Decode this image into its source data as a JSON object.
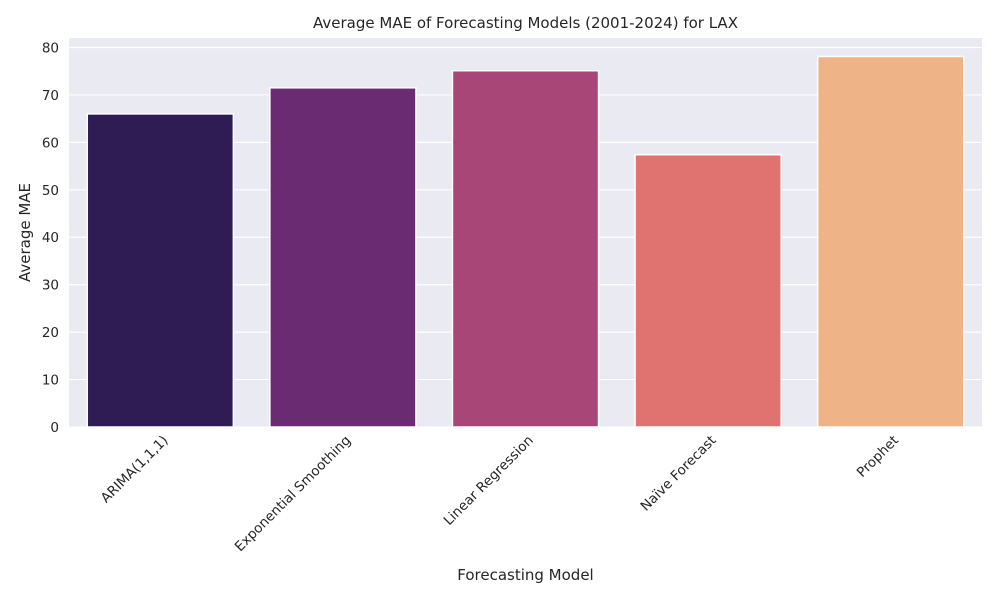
{
  "chart_data": {
    "type": "bar",
    "title": "Average MAE of Forecasting Models (2001-2024) for LAX",
    "xlabel": "Forecasting Model",
    "ylabel": "Average MAE",
    "categories": [
      "ARIMA(1,1,1)",
      "Exponential Smoothing",
      "Linear Regression",
      "Naïve Forecast",
      "Prophet"
    ],
    "values": [
      66.0,
      71.5,
      75.1,
      57.4,
      78.1
    ],
    "ylim": [
      0,
      82
    ],
    "yticks": [
      0,
      10,
      20,
      30,
      40,
      50,
      60,
      70,
      80
    ],
    "grid": true,
    "background_color": "#eaeaf2",
    "grid_color": "#ffffff",
    "bar_colors": [
      "#2f1c54",
      "#6a2b73",
      "#a74677",
      "#e07270",
      "#eeb387"
    ]
  }
}
